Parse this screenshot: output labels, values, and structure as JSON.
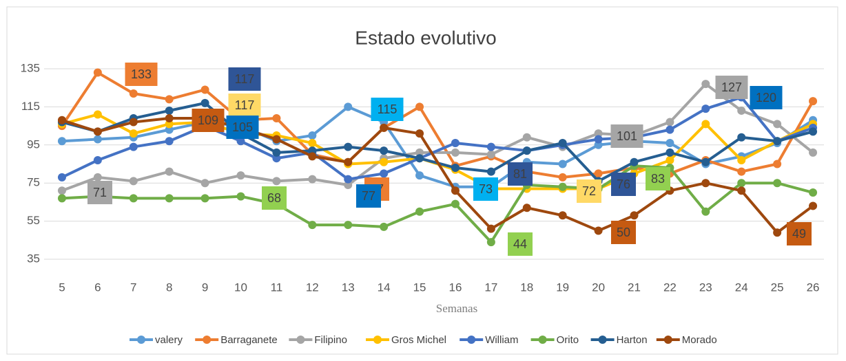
{
  "chart_data": {
    "type": "line",
    "title": "Estado evolutivo",
    "x_label": "Semanas",
    "categories": [
      "5",
      "6",
      "7",
      "8",
      "9",
      "10",
      "11",
      "12",
      "13",
      "14",
      "15",
      "16",
      "17",
      "18",
      "19",
      "20",
      "21",
      "22",
      "23",
      "24",
      "25",
      "26"
    ],
    "ylim": [
      35,
      135
    ],
    "yticks": [
      35,
      55,
      75,
      95,
      115,
      135
    ],
    "grid": true,
    "legend": "bottom",
    "series": [
      {
        "name": "valery",
        "color": "#5B9BD5",
        "values": [
          97,
          98,
          99,
          103,
          107,
          105,
          97,
          100,
          115,
          107,
          79,
          73,
          73,
          86,
          85,
          95,
          97,
          96,
          85,
          89,
          96,
          108
        ]
      },
      {
        "name": "Barraganete",
        "color": "#ED7D31",
        "values": [
          105,
          133,
          122,
          119,
          124,
          108,
          109,
          90,
          86,
          104,
          115,
          84,
          89,
          81,
          78,
          80,
          83,
          80,
          87,
          81,
          85,
          118
        ]
      },
      {
        "name": "Filipino",
        "color": "#A5A5A5",
        "values": [
          71,
          78,
          76,
          81,
          75,
          79,
          76,
          77,
          74,
          88,
          91,
          91,
          90,
          99,
          94,
          101,
          100,
          107,
          127,
          113,
          106,
          91
        ]
      },
      {
        "name": "Gros Michel",
        "color": "#FFC000",
        "values": [
          106,
          111,
          101,
          106,
          107,
          101,
          100,
          96,
          85,
          86,
          88,
          82,
          72,
          72,
          72,
          72,
          80,
          87,
          106,
          87,
          97,
          106
        ]
      },
      {
        "name": "William",
        "color": "#4472C4",
        "values": [
          78,
          87,
          94,
          97,
          105,
          97,
          88,
          91,
          77,
          80,
          88,
          96,
          94,
          92,
          95,
          98,
          99,
          103,
          114,
          120,
          97,
          104
        ]
      },
      {
        "name": "Orito",
        "color": "#70AD47",
        "values": [
          67,
          68,
          67,
          67,
          67,
          68,
          64,
          53,
          53,
          52,
          60,
          64,
          44,
          74,
          73,
          72,
          84,
          83,
          60,
          75,
          75,
          70
        ]
      },
      {
        "name": "Harton",
        "color": "#255E91",
        "values": [
          107,
          102,
          109,
          113,
          117,
          101,
          91,
          92,
          94,
          92,
          88,
          83,
          81,
          92,
          96,
          76,
          86,
          91,
          86,
          99,
          97,
          102
        ]
      },
      {
        "name": "Morado",
        "color": "#9E480E",
        "values": [
          108,
          102,
          107,
          109,
          109,
          104,
          98,
          89,
          86,
          104,
          101,
          71,
          51,
          62,
          58,
          50,
          58,
          71,
          75,
          71,
          49,
          63
        ]
      }
    ],
    "annotations": [
      {
        "text": "133",
        "color": "#ED7D31"
      },
      {
        "text": "117",
        "color": "#2F5597"
      },
      {
        "text": "117",
        "color": "#FFD966"
      },
      {
        "text": "109",
        "color": "#C55A11"
      },
      {
        "text": "105",
        "color": "#0070C0"
      },
      {
        "text": "115",
        "color": "#00B0F0"
      },
      {
        "text": "77",
        "color": "#ED7D31"
      },
      {
        "text": "77",
        "color": "#0070C0"
      },
      {
        "text": "71",
        "color": "#A5A5A5"
      },
      {
        "text": "68",
        "color": "#92D050"
      },
      {
        "text": "73",
        "color": "#00B0F0"
      },
      {
        "text": "81",
        "color": "#2F5597"
      },
      {
        "text": "72",
        "color": "#FFD966"
      },
      {
        "text": "76",
        "color": "#2F5597"
      },
      {
        "text": "44",
        "color": "#92D050"
      },
      {
        "text": "101",
        "color": "#A5A5A5"
      },
      {
        "text": "83",
        "color": "#92D050"
      },
      {
        "text": "50",
        "color": "#C55A11"
      },
      {
        "text": "127",
        "color": "#A5A5A5"
      },
      {
        "text": "120",
        "color": "#0070C0"
      },
      {
        "text": "49",
        "color": "#C55A11"
      }
    ]
  }
}
